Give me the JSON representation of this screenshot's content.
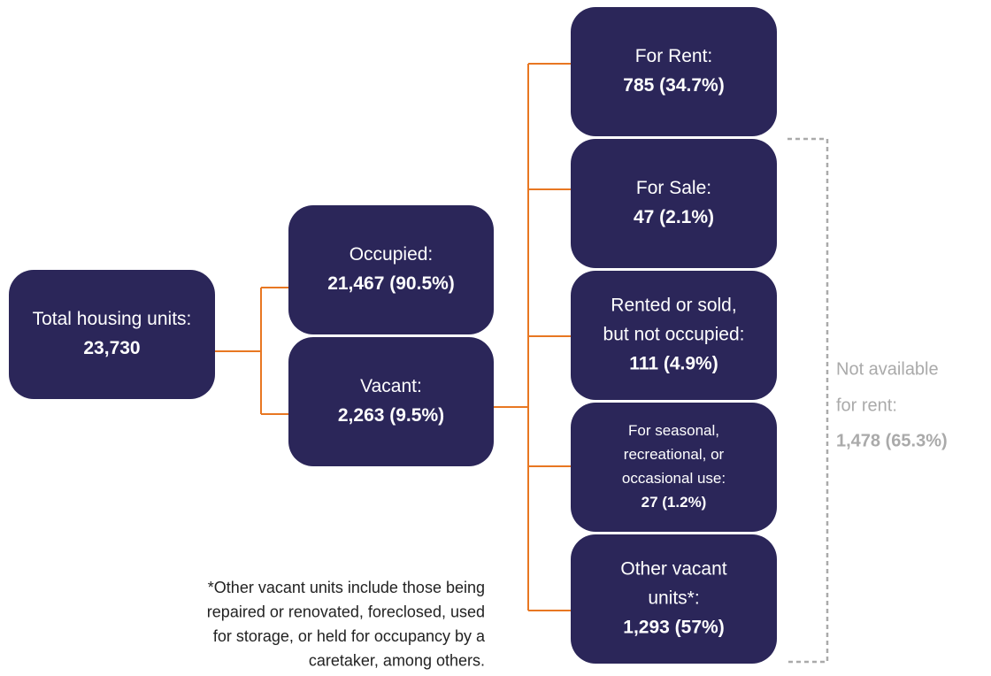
{
  "nodes": [
    {
      "label": [
        "Total housing units:"
      ],
      "value": "23,730"
    },
    {
      "label": [
        "Occupied:"
      ],
      "value": "21,467 (90.5%)"
    },
    {
      "label": [
        "Vacant:"
      ],
      "value": "2,263 (9.5%)"
    },
    {
      "label": [
        "For Rent:"
      ],
      "value": "785 (34.7%)"
    },
    {
      "label": [
        "For Sale:"
      ],
      "value": "47 (2.1%)"
    },
    {
      "label": [
        "Rented or sold,",
        "but not occupied:"
      ],
      "value": "111 (4.9%)"
    },
    {
      "label": [
        "For seasonal,",
        "recreational, or",
        "occasional use:"
      ],
      "value": "27 (1.2%)"
    },
    {
      "label": [
        "Other vacant",
        "units*:"
      ],
      "value": "1,293 (57%)"
    }
  ],
  "bracket": {
    "label": [
      "Not available",
      "for rent:"
    ],
    "value": "1,478 (65.3%)"
  },
  "footnote": [
    "*Other vacant units include those being",
    "repaired or renovated, foreclosed, used",
    "for storage, or held for occupancy by a",
    "caretaker, among others."
  ]
}
